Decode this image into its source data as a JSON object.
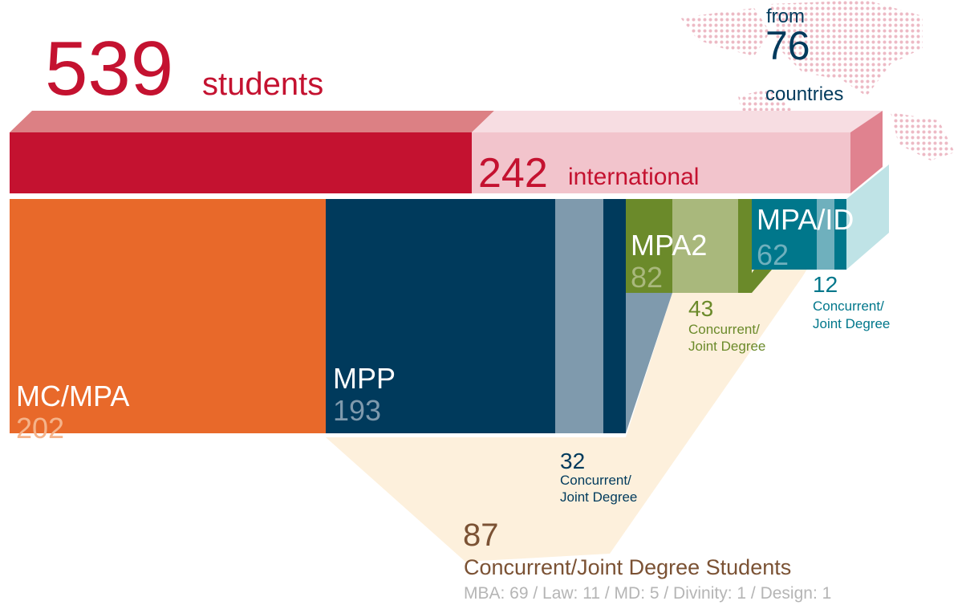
{
  "total": {
    "value": 539,
    "label": "students"
  },
  "countries": {
    "prefix": "from",
    "value": 76,
    "suffix": "countries"
  },
  "international": {
    "value": 242,
    "label": "international"
  },
  "programs": [
    {
      "name": "MC/MPA",
      "value": 202
    },
    {
      "name": "MPP",
      "value": 193
    },
    {
      "name": "MPA2",
      "value": 82
    },
    {
      "name": "MPA/ID",
      "value": 62
    }
  ],
  "concurrent": [
    {
      "value": 32,
      "label": [
        "Concurrent/",
        "Joint Degree"
      ]
    },
    {
      "value": 43,
      "label": [
        "Concurrent/",
        "Joint Degree"
      ]
    },
    {
      "value": 12,
      "label": [
        "Concurrent/",
        "Joint Degree"
      ]
    }
  ],
  "summary": {
    "value": 87,
    "label": "Concurrent/Joint Degree Students",
    "breakdown": "MBA: 69 / Law: 11 / MD: 5 / Divinity: 1 / Design: 1"
  }
}
